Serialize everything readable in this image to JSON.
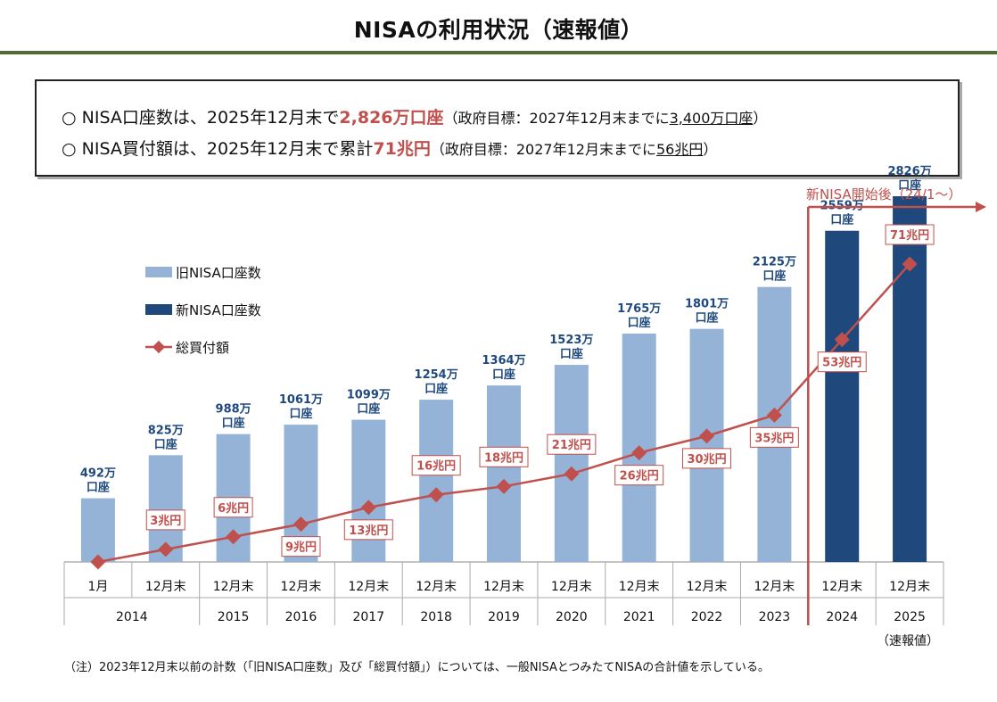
{
  "title": "NISAの利用状況（速報値）",
  "summary": {
    "line1": {
      "bullet": "○",
      "prefix": "NISA口座数は、2025年12月末で",
      "highlight": "2,826万口座",
      "target_prefix": "（政府目標：2027年12月末までに",
      "target_value": "3,400万口座",
      "target_suffix": "）"
    },
    "line2": {
      "bullet": "○",
      "prefix": "NISA買付額は、2025年12月末で累計",
      "highlight": "71兆円",
      "target_prefix": "（政府目標：2027年12月末までに",
      "target_value": "56兆円",
      "target_suffix": "）"
    }
  },
  "new_nisa_marker": "新NISA開始後（24/1～）",
  "preliminary_label": "（速報値）",
  "footnote": "（注）2023年12月末以前の計数（「旧NISA口座数」及び「総買付額」）については、一般NISAとつみたてNISAの合計値を示している。",
  "colors": {
    "old_bar": "#95B3D7",
    "new_bar": "#1F497D",
    "line": "#C0504D",
    "value_label": "#1F497D",
    "rule": "#556B2F"
  },
  "chart_data": {
    "type": "bar",
    "categories": [
      "1月",
      "12月末",
      "12月末",
      "12月末",
      "12月末",
      "12月末",
      "12月末",
      "12月末",
      "12月末",
      "12月末",
      "12月末",
      "12月末",
      "12月末"
    ],
    "years": [
      "2014",
      "2015",
      "2016",
      "2017",
      "2018",
      "2019",
      "2020",
      "2021",
      "2022",
      "2023",
      "2024",
      "2025"
    ],
    "year_spans": [
      2,
      1,
      1,
      1,
      1,
      1,
      1,
      1,
      1,
      1,
      1,
      1
    ],
    "series": [
      {
        "name": "旧NISA口座数",
        "type": "bar",
        "values": [
          492,
          825,
          988,
          1061,
          1099,
          1254,
          1364,
          1523,
          1765,
          1801,
          2125,
          null,
          null
        ]
      },
      {
        "name": "新NISA口座数",
        "type": "bar",
        "values": [
          null,
          null,
          null,
          null,
          null,
          null,
          null,
          null,
          null,
          null,
          null,
          2559,
          2826
        ]
      },
      {
        "name": "総買付額",
        "type": "line",
        "values": [
          0,
          3,
          6,
          9,
          13,
          16,
          18,
          21,
          26,
          30,
          35,
          53,
          71
        ]
      }
    ],
    "bar_labels": [
      "492万\n口座",
      "825万\n口座",
      "988万\n口座",
      "1061万\n口座",
      "1099万\n口座",
      "1254万\n口座",
      "1364万\n口座",
      "1523万\n口座",
      "1765万\n口座",
      "1801万\n口座",
      "2125万\n口座",
      "2559万\n口座",
      "2826万\n口座"
    ],
    "line_labels": [
      null,
      "3兆円",
      "6兆円",
      "9兆円",
      "13兆円",
      "16兆円",
      "18兆円",
      "21兆円",
      "26兆円",
      "30兆円",
      "35兆円",
      "53兆円",
      "71兆円"
    ],
    "line_label_side": [
      "none",
      "above",
      "above",
      "below",
      "below",
      "above",
      "above",
      "above",
      "below",
      "below",
      "below",
      "below",
      "above"
    ],
    "bar_scale_max": 3100,
    "line_scale_max": 90,
    "legend": [
      "旧NISA口座数",
      "新NISA口座数",
      "総買付額"
    ],
    "legend_position": "upper-left",
    "grid": false
  }
}
